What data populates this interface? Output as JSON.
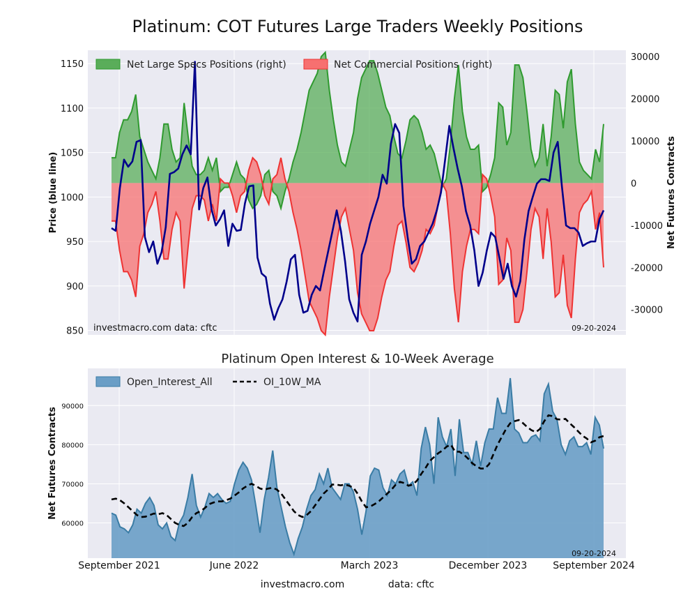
{
  "title": "Platinum: COT Futures Large Traders Weekly Positions",
  "top_chart": {
    "left_ylabel": "Price (blue line)",
    "right_ylabel": "Net Futures Contracts",
    "legend": {
      "specs": "Net Large Specs Positions (right)",
      "commercial": "Net Commercial Positions (right)"
    },
    "watermark": "investmacro.com    data: cftc",
    "date": "09-20-2024"
  },
  "bottom_chart": {
    "title": "Platinum Open Interest & 10-Week Average",
    "ylabel": "Net Futures Contracts",
    "legend": {
      "oi": "Open_Interest_All",
      "ma": "OI_10W_MA"
    },
    "date": "09-20-2024"
  },
  "x_ticks": [
    "September 2021",
    "June 2022",
    "March 2023",
    "December 2023",
    "September 2024"
  ],
  "footer": {
    "site": "investmacro.com",
    "data": "data: cftc"
  },
  "colors": {
    "specs_fill": "#5aad5a",
    "specs_line": "#2f9a2f",
    "commercial_fill": "#f77070",
    "commercial_line": "#ee3333",
    "price_line": "#00008b",
    "oi_fill": "#6a9ec6",
    "oi_line": "#3a7ca5",
    "ma_line": "#000000"
  },
  "chart_data": [
    {
      "type": "area",
      "x_range": [
        "2021-09",
        "2024-09"
      ],
      "price_axis": {
        "ylim": [
          845,
          1165
        ],
        "ticks": [
          850,
          900,
          950,
          1000,
          1050,
          1100,
          1150
        ]
      },
      "net_axis": {
        "ylim": [
          -36000,
          31500
        ],
        "ticks": [
          -30000,
          -20000,
          -10000,
          0,
          10000,
          20000,
          30000
        ]
      },
      "series": [
        {
          "name": "Net Large Specs Positions (right)",
          "values": [
            6000,
            6000,
            12000,
            15000,
            15000,
            17000,
            21000,
            11000,
            8000,
            5000,
            3000,
            1000,
            6000,
            14000,
            14000,
            8000,
            5000,
            6000,
            19000,
            11000,
            4000,
            2000,
            2000,
            3000,
            6000,
            3000,
            6000,
            -2000,
            -1000,
            -1000,
            2000,
            5000,
            2000,
            1000,
            -4000,
            -6000,
            -5000,
            -3000,
            2000,
            3000,
            -2000,
            -3000,
            -6000,
            -2000,
            1000,
            5000,
            8000,
            12000,
            17000,
            22000,
            24000,
            26000,
            30000,
            31000,
            22000,
            15000,
            9000,
            5000,
            4000,
            8000,
            12000,
            20000,
            25000,
            27000,
            29000,
            29000,
            26000,
            22000,
            18000,
            16000,
            11000,
            7000,
            6000,
            10000,
            15000,
            16000,
            15000,
            12000,
            8000,
            9000,
            7000,
            3000,
            -1000,
            1000,
            9000,
            20000,
            28000,
            17000,
            11000,
            8000,
            8000,
            9000,
            -2000,
            -1000,
            2000,
            6000,
            19000,
            18000,
            9000,
            12000,
            28000,
            28000,
            25000,
            17000,
            8000,
            4000,
            6000,
            14000,
            4000,
            11000,
            22000,
            21000,
            13000,
            24000,
            27000,
            14000,
            5000,
            3000,
            2000,
            1000,
            8000,
            5000,
            14000
          ],
          "color": "#5aad5a"
        },
        {
          "name": "Net Commercial Positions (right)",
          "values": [
            -9000,
            -9000,
            -16000,
            -21000,
            -21000,
            -23000,
            -27000,
            -15000,
            -12000,
            -7000,
            -5000,
            -2000,
            -9000,
            -18000,
            -18000,
            -11000,
            -7000,
            -9000,
            -25000,
            -15000,
            -6000,
            -3000,
            -3000,
            -4000,
            -9000,
            -5000,
            -9000,
            1000,
            0,
            0,
            -3000,
            -7000,
            -3000,
            -2000,
            3000,
            6000,
            5000,
            2000,
            -3000,
            -5000,
            1000,
            2000,
            6000,
            1000,
            -2000,
            -7000,
            -11000,
            -16000,
            -22000,
            -28000,
            -30000,
            -32000,
            -35000,
            -36000,
            -27000,
            -20000,
            -13000,
            -8000,
            -6000,
            -11000,
            -16000,
            -26000,
            -31000,
            -33000,
            -35000,
            -35000,
            -32000,
            -27000,
            -23000,
            -21000,
            -15000,
            -10000,
            -9000,
            -14000,
            -20000,
            -21000,
            -19000,
            -16000,
            -11000,
            -12000,
            -10000,
            -5000,
            0,
            -2000,
            -12000,
            -25000,
            -33000,
            -21000,
            -15000,
            -11000,
            -11000,
            -12000,
            2000,
            1000,
            -3000,
            -8000,
            -24000,
            -23000,
            -13000,
            -16000,
            -33000,
            -33000,
            -30000,
            -21000,
            -11000,
            -6000,
            -8000,
            -18000,
            -6000,
            -14000,
            -27000,
            -26000,
            -17000,
            -29000,
            -32000,
            -18000,
            -7000,
            -5000,
            -4000,
            -2000,
            -11000,
            -7000,
            -20000
          ],
          "color": "#f77070"
        },
        {
          "name": "price",
          "values": [
            965,
            962,
            1010,
            1042,
            1034,
            1040,
            1062,
            1064,
            955,
            938,
            950,
            925,
            938,
            966,
            1026,
            1028,
            1032,
            1048,
            1058,
            1048,
            1152,
            986,
            1010,
            1022,
            986,
            968,
            975,
            985,
            945,
            970,
            962,
            963,
            993,
            1012,
            1013,
            932,
            914,
            910,
            880,
            862,
            875,
            885,
            905,
            930,
            935,
            890,
            870,
            872,
            890,
            900,
            895,
            918,
            940,
            962,
            985,
            962,
            928,
            885,
            870,
            860,
            935,
            950,
            970,
            985,
            1000,
            1025,
            1015,
            1060,
            1082,
            1072,
            990,
            955,
            925,
            930,
            945,
            950,
            960,
            970,
            985,
            1005,
            1042,
            1080,
            1055,
            1032,
            1012,
            984,
            968,
            940,
            900,
            915,
            940,
            960,
            955,
            932,
            908,
            925,
            900,
            888,
            905,
            952,
            984,
            1000,
            1015,
            1020,
            1020,
            1018,
            1050,
            1062,
            1012,
            968,
            965,
            965,
            960,
            945,
            948,
            950,
            950,
            975,
            985
          ],
          "color": "#00008b"
        }
      ]
    },
    {
      "type": "area",
      "title": "Platinum Open Interest & 10-Week Average",
      "ylabel": "Net Futures Contracts",
      "x_range": [
        "2021-09",
        "2024-09"
      ],
      "ylim": [
        51000,
        99500
      ],
      "y_ticks": [
        60000,
        70000,
        80000,
        90000
      ],
      "series": [
        {
          "name": "Open_Interest_All",
          "values": [
            62500,
            62000,
            59000,
            58500,
            57500,
            59500,
            63500,
            62500,
            65000,
            66500,
            64500,
            59500,
            58500,
            60000,
            56500,
            55500,
            60000,
            62000,
            66500,
            72500,
            64500,
            61500,
            64000,
            67500,
            66500,
            67500,
            66000,
            65000,
            65500,
            70000,
            73500,
            75500,
            74000,
            71000,
            64500,
            57500,
            66000,
            71500,
            78500,
            69000,
            64000,
            59000,
            55000,
            52000,
            56000,
            59000,
            63500,
            67000,
            68500,
            72500,
            70000,
            74000,
            69000,
            67500,
            66000,
            70000,
            70000,
            68000,
            63500,
            57000,
            63000,
            72000,
            74000,
            73500,
            69000,
            67000,
            71000,
            70000,
            72500,
            73500,
            69500,
            70500,
            67000,
            79000,
            84500,
            80000,
            70000,
            87000,
            82000,
            79500,
            84000,
            72000,
            86500,
            78000,
            78000,
            75000,
            81000,
            74500,
            80500,
            84000,
            84000,
            92000,
            88000,
            88000,
            97000,
            84000,
            83000,
            80500,
            80500,
            82000,
            82500,
            81000,
            93000,
            95500,
            88500,
            86500,
            80000,
            77500,
            81000,
            82000,
            79500,
            79500,
            80500,
            77500,
            87000,
            85000,
            79000
          ],
          "color": "#6a9ec6"
        },
        {
          "name": "OI_10W_MA",
          "values": [
            66000,
            66200,
            65800,
            65000,
            64000,
            63000,
            62000,
            61500,
            61600,
            62000,
            62400,
            62200,
            62500,
            62000,
            61000,
            60000,
            59500,
            59200,
            60000,
            61500,
            62500,
            63000,
            63800,
            64800,
            65200,
            65500,
            65500,
            65800,
            66200,
            67000,
            67800,
            68800,
            69500,
            70000,
            69500,
            68800,
            68500,
            68800,
            69000,
            68500,
            67500,
            66000,
            64500,
            63000,
            62000,
            61500,
            62000,
            63000,
            64500,
            66000,
            67500,
            68500,
            69800,
            69800,
            69600,
            69800,
            69500,
            69000,
            67500,
            65500,
            64000,
            64200,
            64800,
            65500,
            66500,
            67500,
            68500,
            69800,
            70500,
            70200,
            69500,
            69800,
            70800,
            72500,
            74000,
            75800,
            76800,
            77800,
            78500,
            79500,
            80000,
            78200,
            78200,
            77500,
            76500,
            75300,
            74500,
            73900,
            73900,
            75000,
            77500,
            80000,
            82000,
            84000,
            85500,
            86000,
            86300,
            85500,
            84500,
            83700,
            83200,
            84000,
            86000,
            87500,
            87300,
            86500,
            86400,
            86600,
            85500,
            84500,
            83400,
            82300,
            81600,
            80600,
            81000,
            81900,
            82200
          ],
          "color": "#000000"
        }
      ]
    }
  ]
}
